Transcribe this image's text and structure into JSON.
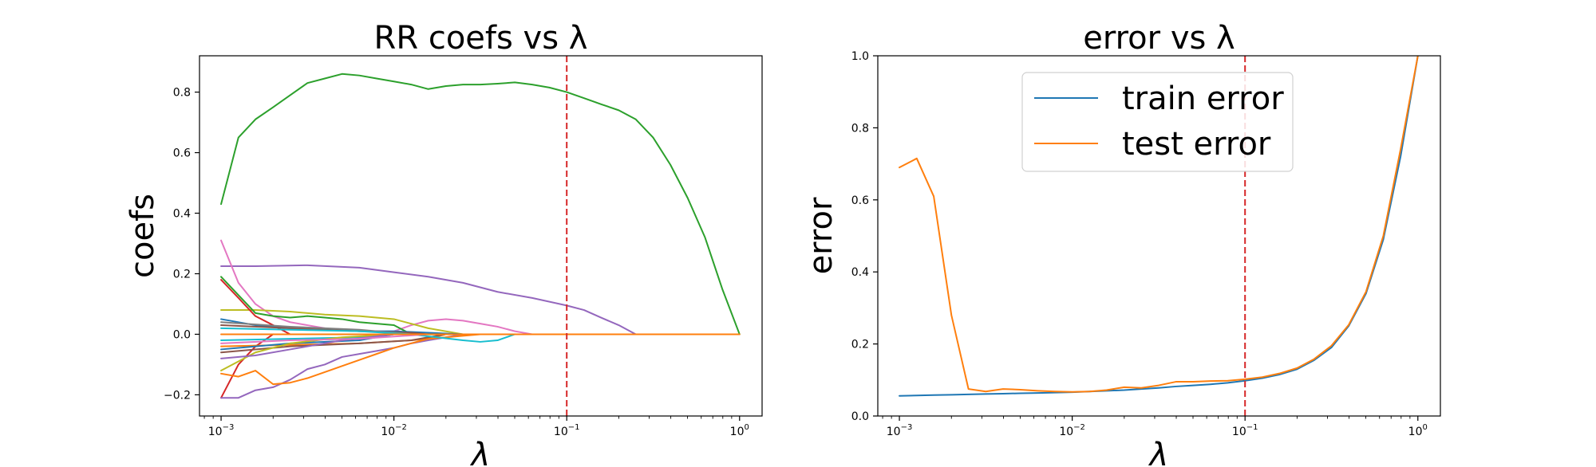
{
  "chart_data": [
    {
      "type": "line",
      "title": "RR coefs vs λ",
      "xlabel": "λ",
      "ylabel": "coefs",
      "xscale": "log",
      "xlim": [
        0.00075,
        1.35
      ],
      "ylim": [
        -0.27,
        0.92
      ],
      "xticks": [
        0.001,
        0.01,
        0.1,
        1
      ],
      "xtick_labels": [
        "10",
        "10",
        "10",
        "10"
      ],
      "xtick_exponents": [
        "−3",
        "−2",
        "−1",
        "0"
      ],
      "yticks": [
        -0.2,
        0.0,
        0.2,
        0.4,
        0.6,
        0.8
      ],
      "ytick_labels": [
        "−0.2",
        "0.0",
        "0.2",
        "0.4",
        "0.6",
        "0.8"
      ],
      "vline": {
        "x": 0.1,
        "color": "#d62728",
        "style": "dashed"
      },
      "grid": false,
      "series": [
        {
          "color": "#2ca02c",
          "x": [
            0.001,
            0.00126,
            0.00158,
            0.002,
            0.00251,
            0.00316,
            0.00398,
            0.00501,
            0.00631,
            0.00794,
            0.01,
            0.0126,
            0.0158,
            0.02,
            0.0251,
            0.0316,
            0.0398,
            0.0501,
            0.0631,
            0.0794,
            0.1,
            0.126,
            0.158,
            0.2,
            0.251,
            0.316,
            0.398,
            0.501,
            0.631,
            0.794,
            1.0
          ],
          "values": [
            0.43,
            0.65,
            0.71,
            0.75,
            0.79,
            0.83,
            0.845,
            0.86,
            0.855,
            0.845,
            0.835,
            0.825,
            0.81,
            0.82,
            0.825,
            0.825,
            0.828,
            0.832,
            0.825,
            0.815,
            0.8,
            0.78,
            0.76,
            0.74,
            0.71,
            0.65,
            0.56,
            0.45,
            0.32,
            0.15,
            0.0
          ]
        },
        {
          "color": "#9467bd",
          "x": [
            0.001,
            0.00158,
            0.00316,
            0.00631,
            0.01,
            0.0158,
            0.0251,
            0.0398,
            0.0631,
            0.1,
            0.126,
            0.158,
            0.2,
            0.251
          ],
          "values": [
            0.225,
            0.225,
            0.228,
            0.22,
            0.205,
            0.19,
            0.17,
            0.14,
            0.12,
            0.095,
            0.08,
            0.055,
            0.03,
            0.0
          ]
        },
        {
          "color": "#e377c2",
          "x": [
            0.001,
            0.00126,
            0.00158,
            0.002,
            0.00251,
            0.00316,
            0.00398
          ],
          "values": [
            0.31,
            0.17,
            0.1,
            0.06,
            0.04,
            0.03,
            0.02
          ]
        },
        {
          "color": "#e377c2",
          "x": [
            0.01,
            0.0126,
            0.0158,
            0.02,
            0.0251,
            0.0316,
            0.0398,
            0.0501,
            0.0631
          ],
          "values": [
            0.01,
            0.03,
            0.045,
            0.05,
            0.045,
            0.035,
            0.025,
            0.01,
            0.0
          ]
        },
        {
          "color": "#bcbd22",
          "x": [
            0.001,
            0.00158,
            0.00251,
            0.00398,
            0.00631,
            0.01,
            0.0158,
            0.0251
          ],
          "values": [
            0.08,
            0.08,
            0.075,
            0.065,
            0.06,
            0.05,
            0.02,
            0.0
          ]
        },
        {
          "color": "#2ca02c",
          "x": [
            0.001,
            0.00158,
            0.002,
            0.00251,
            0.00316,
            0.00398,
            0.00501,
            0.00631,
            0.00794,
            0.01,
            0.0126
          ],
          "values": [
            0.19,
            0.07,
            0.06,
            0.055,
            0.06,
            0.055,
            0.05,
            0.04,
            0.035,
            0.03,
            0.0
          ]
        },
        {
          "color": "#d62728",
          "x": [
            0.001,
            0.00126,
            0.00158,
            0.002,
            0.00251
          ],
          "values": [
            0.18,
            0.12,
            0.06,
            0.03,
            0.0
          ]
        },
        {
          "color": "#d62728",
          "x": [
            0.001,
            0.00126,
            0.00158,
            0.002
          ],
          "values": [
            -0.21,
            -0.1,
            -0.04,
            0.0
          ]
        },
        {
          "color": "#9467bd",
          "x": [
            0.001,
            0.00126,
            0.00158,
            0.002,
            0.00251,
            0.00316,
            0.00398,
            0.00501,
            0.00631,
            0.00794,
            0.01,
            0.0126,
            0.0158,
            0.02,
            0.0251
          ],
          "values": [
            -0.21,
            -0.21,
            -0.185,
            -0.175,
            -0.15,
            -0.115,
            -0.1,
            -0.075,
            -0.065,
            -0.055,
            -0.045,
            -0.03,
            -0.02,
            -0.01,
            0.0
          ]
        },
        {
          "color": "#ff7f0e",
          "x": [
            0.001,
            0.00126,
            0.00158,
            0.002,
            0.00251,
            0.00316,
            0.00398,
            0.00501,
            0.00631,
            0.00794,
            0.01,
            0.0126,
            0.0158,
            0.02
          ],
          "values": [
            -0.13,
            -0.14,
            -0.12,
            -0.165,
            -0.16,
            -0.145,
            -0.125,
            -0.105,
            -0.085,
            -0.065,
            -0.045,
            -0.03,
            -0.015,
            0.0
          ]
        },
        {
          "color": "#ff7f0e",
          "x": [
            0.001,
            0.00251,
            0.00631,
            0.0126,
            0.02,
            0.0316
          ],
          "values": [
            -0.04,
            -0.035,
            -0.03,
            -0.02,
            -0.01,
            0.0
          ]
        },
        {
          "color": "#1f77b4",
          "x": [
            0.001,
            0.00158,
            0.00251,
            0.00398,
            0.00631,
            0.01,
            0.0158,
            0.0251
          ],
          "values": [
            0.05,
            0.03,
            0.02,
            0.015,
            0.01,
            0.01,
            0.005,
            0.0
          ]
        },
        {
          "color": "#1f77b4",
          "x": [
            0.001,
            0.00251,
            0.00631,
            0.01
          ],
          "values": [
            -0.05,
            -0.03,
            -0.02,
            0.0
          ]
        },
        {
          "color": "#8c564b",
          "x": [
            0.001,
            0.00251,
            0.00631,
            0.0126,
            0.0158
          ],
          "values": [
            0.03,
            0.02,
            0.01,
            0.005,
            0.0
          ]
        },
        {
          "color": "#8c564b",
          "x": [
            0.001,
            0.00251,
            0.00631,
            0.0126,
            0.0158,
            0.02
          ],
          "values": [
            -0.06,
            -0.04,
            -0.03,
            -0.02,
            -0.01,
            0.0
          ]
        },
        {
          "color": "#7f7f7f",
          "x": [
            0.001,
            0.00251,
            0.00631,
            0.0126
          ],
          "values": [
            0.04,
            0.025,
            0.015,
            0.0
          ]
        },
        {
          "color": "#17becf",
          "x": [
            0.001,
            0.00251,
            0.00631,
            0.0126,
            0.0251,
            0.0316,
            0.0398,
            0.0501
          ],
          "values": [
            0.02,
            0.015,
            0.01,
            0.0,
            -0.02,
            -0.025,
            -0.02,
            0.0
          ]
        },
        {
          "color": "#17becf",
          "x": [
            0.001,
            0.00251,
            0.00631,
            0.01
          ],
          "values": [
            -0.02,
            -0.015,
            -0.01,
            0.0
          ]
        },
        {
          "color": "#bcbd22",
          "x": [
            0.001,
            0.00158,
            0.00251,
            0.00501,
            0.01
          ],
          "values": [
            -0.12,
            -0.06,
            -0.03,
            -0.01,
            0.0
          ]
        },
        {
          "color": "#9467bd",
          "x": [
            0.001,
            0.00158,
            0.00251,
            0.00501,
            0.01
          ],
          "values": [
            -0.08,
            -0.07,
            -0.05,
            -0.02,
            0.0
          ]
        },
        {
          "color": "#e377c2",
          "x": [
            0.001,
            0.00251,
            0.00631,
            0.0158
          ],
          "values": [
            -0.03,
            -0.02,
            -0.015,
            0.0
          ]
        },
        {
          "color": "#ff7f0e",
          "x": [
            0.001,
            0.01,
            0.1,
            1.0
          ],
          "values": [
            0.0,
            0.0,
            0.0,
            0.0
          ]
        }
      ]
    },
    {
      "type": "line",
      "title": "error vs λ",
      "xlabel": "λ",
      "ylabel": "error",
      "xscale": "log",
      "xlim": [
        0.00075,
        1.35
      ],
      "ylim": [
        0.0,
        1.0
      ],
      "xticks": [
        0.001,
        0.01,
        0.1,
        1
      ],
      "xtick_labels": [
        "10",
        "10",
        "10",
        "10"
      ],
      "xtick_exponents": [
        "−3",
        "−2",
        "−1",
        "0"
      ],
      "yticks": [
        0.0,
        0.2,
        0.4,
        0.6,
        0.8,
        1.0
      ],
      "ytick_labels": [
        "0.0",
        "0.2",
        "0.4",
        "0.6",
        "0.8",
        "1.0"
      ],
      "vline": {
        "x": 0.1,
        "color": "#d62728",
        "style": "dashed"
      },
      "legend": {
        "position": "top-center",
        "entries": [
          "train error",
          "test error"
        ]
      },
      "grid": false,
      "series": [
        {
          "name": "train error",
          "color": "#1f77b4",
          "x": [
            0.001,
            0.00126,
            0.00158,
            0.002,
            0.00251,
            0.00316,
            0.00398,
            0.00501,
            0.00631,
            0.00794,
            0.01,
            0.0126,
            0.0158,
            0.02,
            0.0251,
            0.0316,
            0.0398,
            0.0501,
            0.0631,
            0.0794,
            0.1,
            0.126,
            0.158,
            0.2,
            0.251,
            0.316,
            0.398,
            0.501,
            0.631,
            0.794,
            1.0
          ],
          "values": [
            0.056,
            0.057,
            0.058,
            0.059,
            0.06,
            0.061,
            0.062,
            0.063,
            0.064,
            0.065,
            0.066,
            0.068,
            0.07,
            0.072,
            0.075,
            0.078,
            0.082,
            0.085,
            0.088,
            0.092,
            0.098,
            0.105,
            0.115,
            0.13,
            0.155,
            0.19,
            0.25,
            0.34,
            0.49,
            0.72,
            1.0
          ]
        },
        {
          "name": "test error",
          "color": "#ff7f0e",
          "x": [
            0.001,
            0.00126,
            0.00158,
            0.002,
            0.00251,
            0.00316,
            0.00398,
            0.00501,
            0.00631,
            0.00794,
            0.01,
            0.0126,
            0.0158,
            0.02,
            0.0251,
            0.0316,
            0.0398,
            0.0501,
            0.0631,
            0.0794,
            0.1,
            0.126,
            0.158,
            0.2,
            0.251,
            0.316,
            0.398,
            0.501,
            0.631,
            0.794,
            1.0
          ],
          "values": [
            0.69,
            0.715,
            0.61,
            0.28,
            0.075,
            0.068,
            0.075,
            0.073,
            0.07,
            0.068,
            0.067,
            0.068,
            0.072,
            0.08,
            0.078,
            0.085,
            0.095,
            0.095,
            0.097,
            0.098,
            0.102,
            0.108,
            0.118,
            0.133,
            0.158,
            0.195,
            0.253,
            0.345,
            0.5,
            0.74,
            1.0
          ]
        }
      ]
    }
  ]
}
